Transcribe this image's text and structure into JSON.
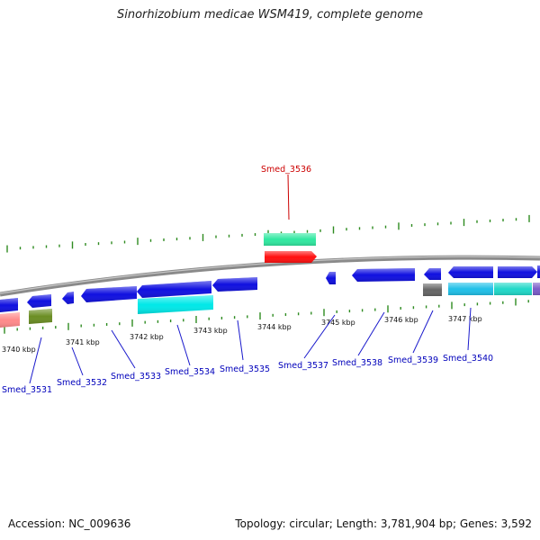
{
  "title": "Sinorhizobium medicae WSM419, complete genome",
  "footer": {
    "accession": "Accession: NC_009636",
    "summary": "Topology: circular; Length: 3,781,904 bp; Genes: 3,592"
  },
  "colors": {
    "backbone": "#8a8a8a",
    "tick": "#2e8b20",
    "scale_label": "#111111",
    "gene_label": "#0000bb",
    "highlight_label": "#cc0000",
    "leader_line": "#1a1acc",
    "highlight_leader": "#cc0000"
  },
  "scale_labels": [
    "3740 kbp",
    "3741 kbp",
    "3742 kbp",
    "3743 kbp",
    "3744 kbp",
    "3745 kbp",
    "3746 kbp",
    "3747 kbp"
  ],
  "gene_labels": [
    {
      "text": "Smed_3531",
      "highlight": false
    },
    {
      "text": "Smed_3532",
      "highlight": false
    },
    {
      "text": "Smed_3533",
      "highlight": false
    },
    {
      "text": "Smed_3534",
      "highlight": false
    },
    {
      "text": "Smed_3535",
      "highlight": false
    },
    {
      "text": "Smed_3537",
      "highlight": false
    },
    {
      "text": "Smed_3538",
      "highlight": false
    },
    {
      "text": "Smed_3539",
      "highlight": false
    },
    {
      "text": "Smed_3540",
      "highlight": false
    },
    {
      "text": "Smed_3536",
      "highlight": true
    }
  ],
  "features": {
    "strand_forward": [
      {
        "label": "Smed_3536",
        "color": "#ff1010"
      },
      {
        "color": "#1010e0"
      },
      {
        "color": "#1010e0"
      },
      {
        "color": "#1010e0"
      },
      {
        "color": "#1010e0"
      },
      {
        "color": "#1010e0"
      },
      {
        "color": "#1010e0"
      }
    ],
    "strand_reverse": [
      {
        "color": "#1010e0"
      },
      {
        "color": "#1010e0"
      },
      {
        "color": "#1010e0"
      },
      {
        "color": "#1010e0"
      },
      {
        "color": "#1010e0"
      },
      {
        "color": "#1010e0"
      }
    ],
    "cog_tracks": [
      {
        "color": "#30e8a0"
      },
      {
        "color": "#00e8e8"
      },
      {
        "color": "#ff8a8a"
      },
      {
        "color": "#6b8e23"
      },
      {
        "color": "#666666"
      },
      {
        "color": "#20c0e8"
      },
      {
        "color": "#20d8c8"
      },
      {
        "color": "#7b5cc8"
      }
    ]
  }
}
